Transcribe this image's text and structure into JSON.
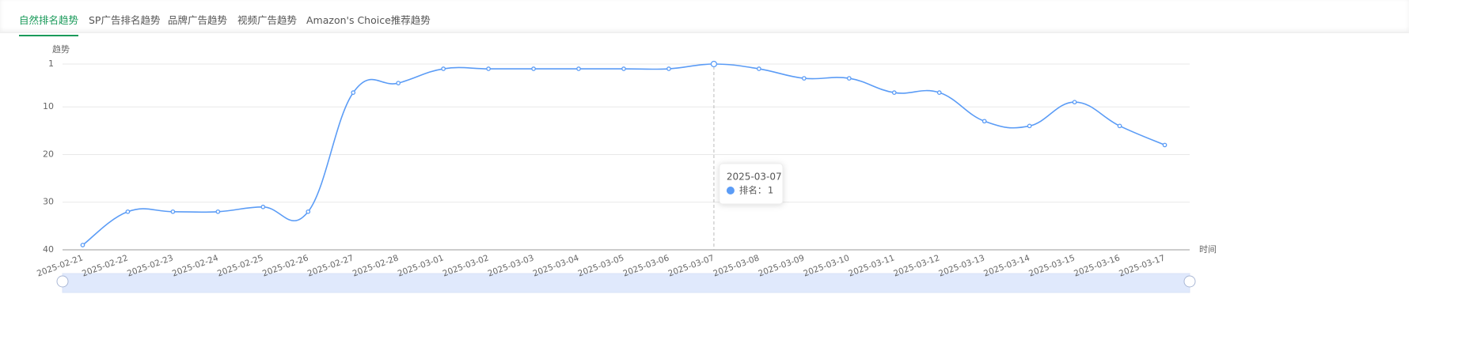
{
  "tabs": [
    "自然排名趋势",
    "SP广告排名趋势",
    "品牌广告趋势",
    "视频广告趋势",
    "Amazon's Choice推荐趋势"
  ],
  "chart_data": {
    "type": "line",
    "y_label": "趋势",
    "x_label": "时间",
    "categories": [
      "2025-02-21",
      "2025-02-22",
      "2025-02-23",
      "2025-02-24",
      "2025-02-25",
      "2025-02-26",
      "2025-02-27",
      "2025-02-28",
      "2025-03-01",
      "2025-03-02",
      "2025-03-03",
      "2025-03-04",
      "2025-03-05",
      "2025-03-06",
      "2025-03-07",
      "2025-03-08",
      "2025-03-09",
      "2025-03-10",
      "2025-03-11",
      "2025-03-12",
      "2025-03-13",
      "2025-03-14",
      "2025-03-15",
      "2025-03-16",
      "2025-03-17"
    ],
    "values": [
      39,
      32,
      32,
      32,
      31,
      32,
      7,
      5,
      2,
      2,
      2,
      2,
      2,
      2,
      1,
      2,
      4,
      4,
      7,
      7,
      13,
      14,
      9,
      14,
      18
    ],
    "color": "#5b9cf6",
    "ylim": [
      1,
      40
    ],
    "yticks": [
      1,
      10,
      20,
      30,
      40
    ],
    "y_inverted": true,
    "grid": true,
    "tooltip": {
      "index": 14,
      "label": "排名："
    }
  }
}
